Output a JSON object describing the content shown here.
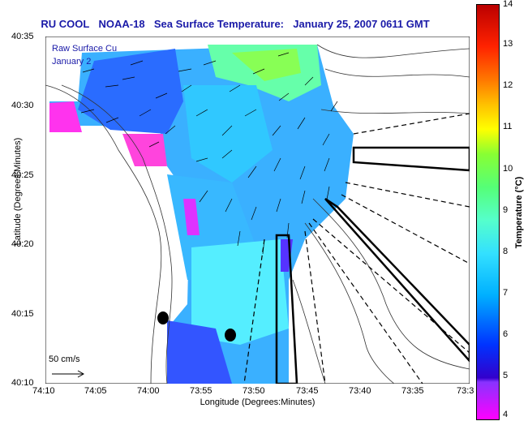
{
  "title": {
    "org": "RU COOL",
    "sat": "NOAA-18",
    "product": "Sea Surface Temperature:",
    "date": "January 25, 2007 0611 GMT"
  },
  "legend_notes": [
    "Raw Surface Cu",
    "January 2"
  ],
  "scale_label": "50 cm/s",
  "axes": {
    "xlabel": "Longitude (Degrees:Minutes)",
    "ylabel": "Latitude (Degrees:Minutes)",
    "xticks": [
      "74:10",
      "74:05",
      "74:00",
      "73:55",
      "73:50",
      "73:45",
      "73:40",
      "73:35",
      "73:3"
    ],
    "yticks": [
      "40:35",
      "40:30",
      "40:25",
      "40:20",
      "40:15",
      "40:10"
    ]
  },
  "colorbar": {
    "label": "Temperature (°C)",
    "ticks": [
      "14",
      "13",
      "12",
      "11",
      "10",
      "9",
      "8",
      "7",
      "6",
      "5",
      "4"
    ]
  }
}
